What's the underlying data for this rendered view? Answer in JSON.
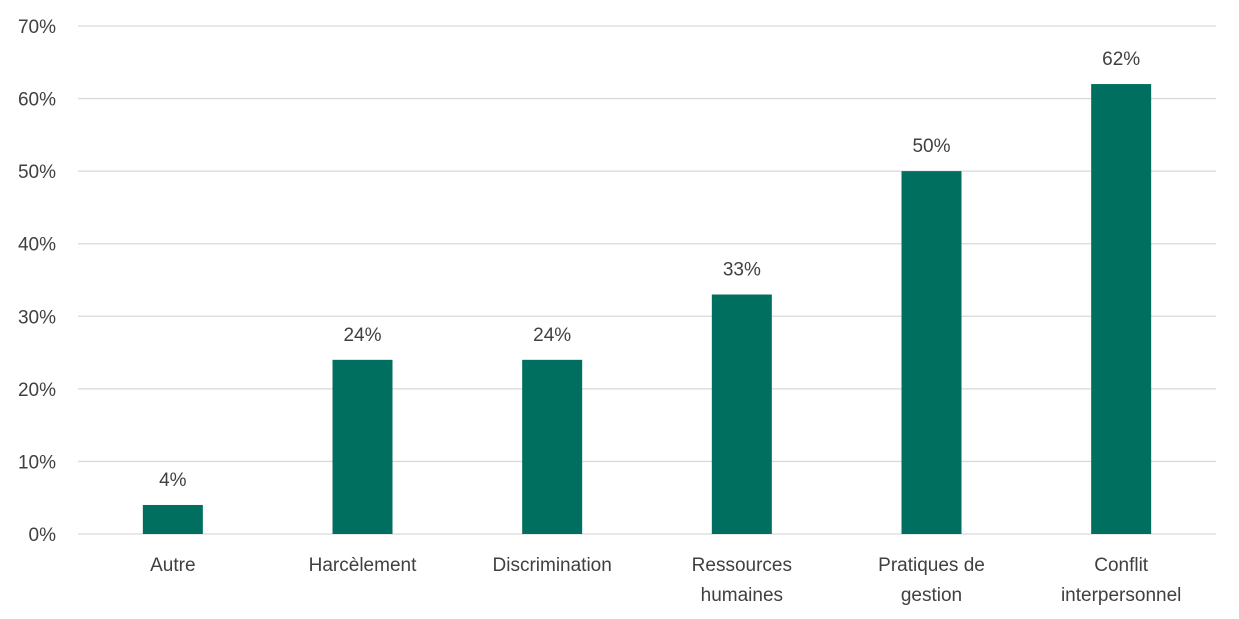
{
  "chart_data": {
    "type": "bar",
    "categories": [
      [
        "Autre"
      ],
      [
        "Harcèlement"
      ],
      [
        "Discrimination"
      ],
      [
        "Ressources",
        "humaines"
      ],
      [
        "Pratiques de",
        "gestion"
      ],
      [
        "Conflit",
        "interpersonnel"
      ]
    ],
    "values": [
      4,
      24,
      24,
      33,
      50,
      62
    ],
    "data_labels": [
      "4%",
      "24%",
      "24%",
      "33%",
      "50%",
      "62%"
    ],
    "ylim": [
      0,
      70
    ],
    "yticks": [
      0,
      10,
      20,
      30,
      40,
      50,
      60,
      70
    ],
    "ytick_labels": [
      "0%",
      "10%",
      "20%",
      "30%",
      "40%",
      "50%",
      "60%",
      "70%"
    ],
    "grid": true,
    "legend": "none",
    "colors": {
      "bar": "#006F5F",
      "grid": "#D9D9D9",
      "text": "#404040"
    }
  }
}
